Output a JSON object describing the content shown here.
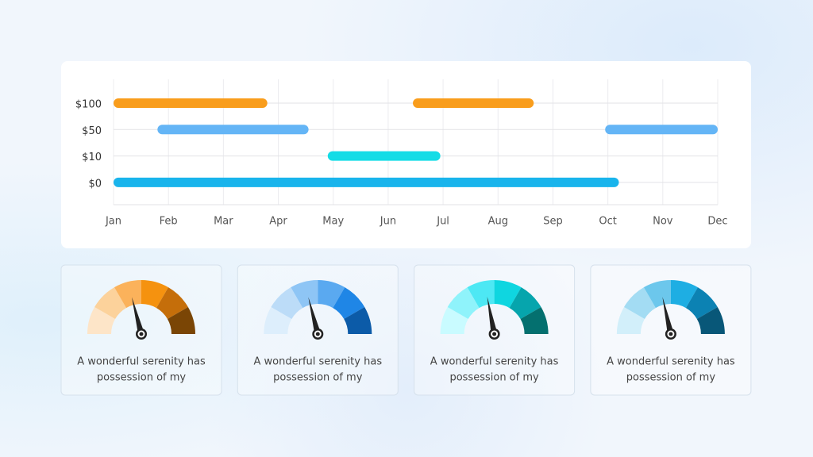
{
  "chart_data": [
    {
      "type": "gantt",
      "categories": [
        "$100",
        "$50",
        "$10",
        "$0"
      ],
      "xlim": [
        0,
        11
      ],
      "xticks": [
        {
          "value": 0,
          "label": "Jan"
        },
        {
          "value": 1,
          "label": "Feb"
        },
        {
          "value": 2,
          "label": "Mar"
        },
        {
          "value": 3,
          "label": "Apr"
        },
        {
          "value": 4,
          "label": "May"
        },
        {
          "value": 5,
          "label": "Jun"
        },
        {
          "value": 6,
          "label": "Jul"
        },
        {
          "value": 7,
          "label": "Aug"
        },
        {
          "value": 8,
          "label": "Sep"
        },
        {
          "value": 9,
          "label": "Oct"
        },
        {
          "value": 10,
          "label": "Nov"
        },
        {
          "value": 11,
          "label": "Dec"
        }
      ],
      "grid": true,
      "series": [
        {
          "color": "#f99d1c",
          "ranges": [
            [
              0,
              2.8
            ],
            [
              5.45,
              7.65
            ]
          ]
        },
        {
          "color": "#64b5f6",
          "ranges": [
            [
              0.8,
              3.55
            ],
            [
              8.95,
              11
            ]
          ]
        },
        {
          "color": "#14dce6",
          "ranges": [
            [
              3.9,
              5.95
            ]
          ]
        },
        {
          "color": "#19b4ec",
          "ranges": [
            [
              0,
              9.2
            ]
          ]
        }
      ]
    },
    {
      "type": "gauge",
      "ylim": [
        0,
        100
      ],
      "value": 42,
      "colors": [
        "#fde5c8",
        "#fcd29b",
        "#fbb25b",
        "#f5920f",
        "#c56e0a",
        "#7a4505"
      ],
      "caption": [
        "A wonderful serenity has",
        "possession of my"
      ]
    },
    {
      "type": "gauge",
      "ylim": [
        0,
        100
      ],
      "value": 42,
      "colors": [
        "#ddeefc",
        "#bcdcf8",
        "#8ec5f5",
        "#5aa9f0",
        "#1f86e6",
        "#0c5ba8"
      ],
      "caption": [
        "A wonderful serenity has",
        "possession of my"
      ]
    },
    {
      "type": "gauge",
      "ylim": [
        0,
        100
      ],
      "value": 44,
      "colors": [
        "#c9fbff",
        "#8ff3fb",
        "#4de8f4",
        "#0fd6e0",
        "#06a5ad",
        "#04706f"
      ],
      "caption": [
        "A wonderful serenity has",
        "possession of my"
      ]
    },
    {
      "type": "gauge",
      "ylim": [
        0,
        100
      ],
      "value": 43,
      "colors": [
        "#d2effa",
        "#a3dcf3",
        "#6cc7ec",
        "#1eaee3",
        "#0c82b3",
        "#085778"
      ],
      "caption": [
        "A wonderful serenity has",
        "possession of my"
      ]
    }
  ]
}
